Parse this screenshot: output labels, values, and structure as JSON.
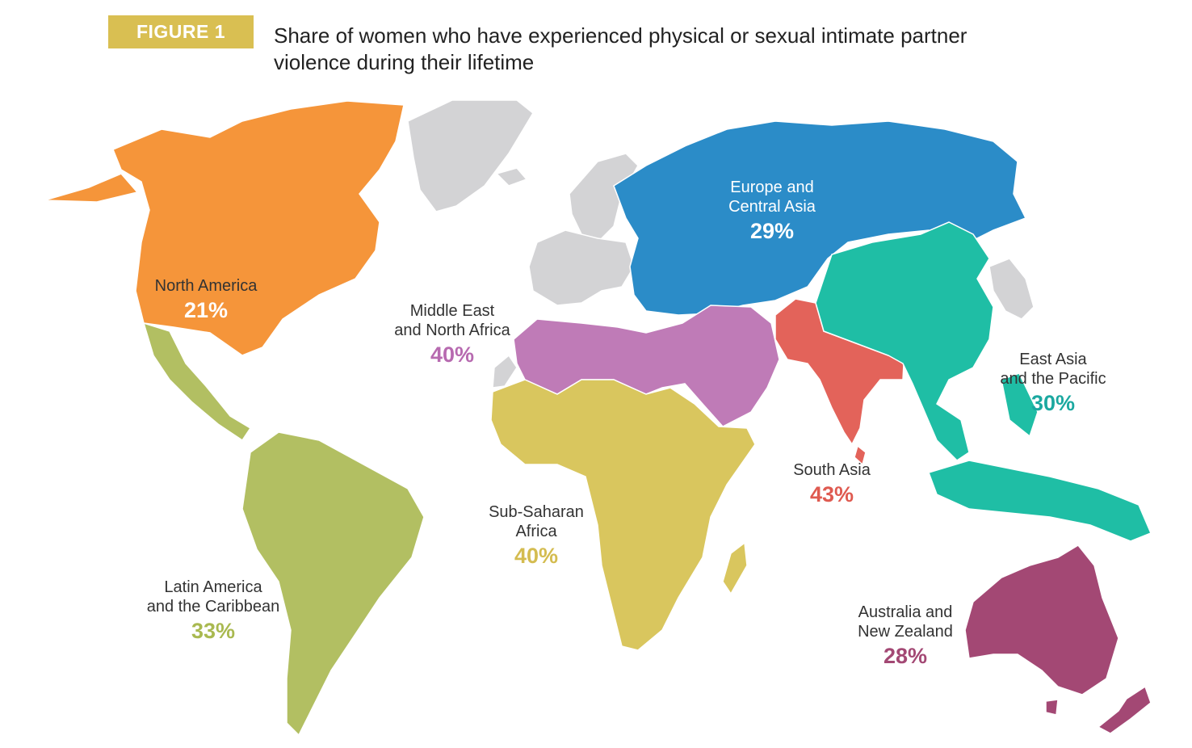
{
  "figure_label": "FIGURE 1",
  "title_line1": "Share of women who have experienced physical or sexual intimate partner",
  "title_line2": "violence during their lifetime",
  "regions": {
    "north_america": {
      "name": "North America",
      "value": "21%",
      "color": "#f5953a"
    },
    "latin_america": {
      "name1": "Latin America",
      "name2": "and the Caribbean",
      "value": "33%",
      "color": "#b2bf62"
    },
    "europe_central_asia": {
      "name1": "Europe and",
      "name2": "Central Asia",
      "value": "29%",
      "color": "#2b8cc8"
    },
    "middle_east": {
      "name1": "Middle East",
      "name2": "and North Africa",
      "value": "40%",
      "color": "#bf7bb7"
    },
    "sub_saharan": {
      "name1": "Sub-Saharan",
      "name2": "Africa",
      "value": "40%",
      "color": "#d9c65e"
    },
    "south_asia": {
      "name": "South Asia",
      "value": "43%",
      "color": "#e3635a"
    },
    "east_asia": {
      "name1": "East Asia",
      "name2": "and the Pacific",
      "value": "30%",
      "color": "#1fbea5"
    },
    "australia": {
      "name1": "Australia and",
      "name2": "New Zealand",
      "value": "28%",
      "color": "#a34874"
    }
  },
  "no_data_color": "#d3d3d5",
  "pct_colors": {
    "latin_america": "#a9b950",
    "middle_east": "#b76ab0",
    "sub_saharan": "#d4bc50",
    "south_asia": "#df5a50",
    "east_asia": "#1ba8a0",
    "australia": "#a34874"
  }
}
